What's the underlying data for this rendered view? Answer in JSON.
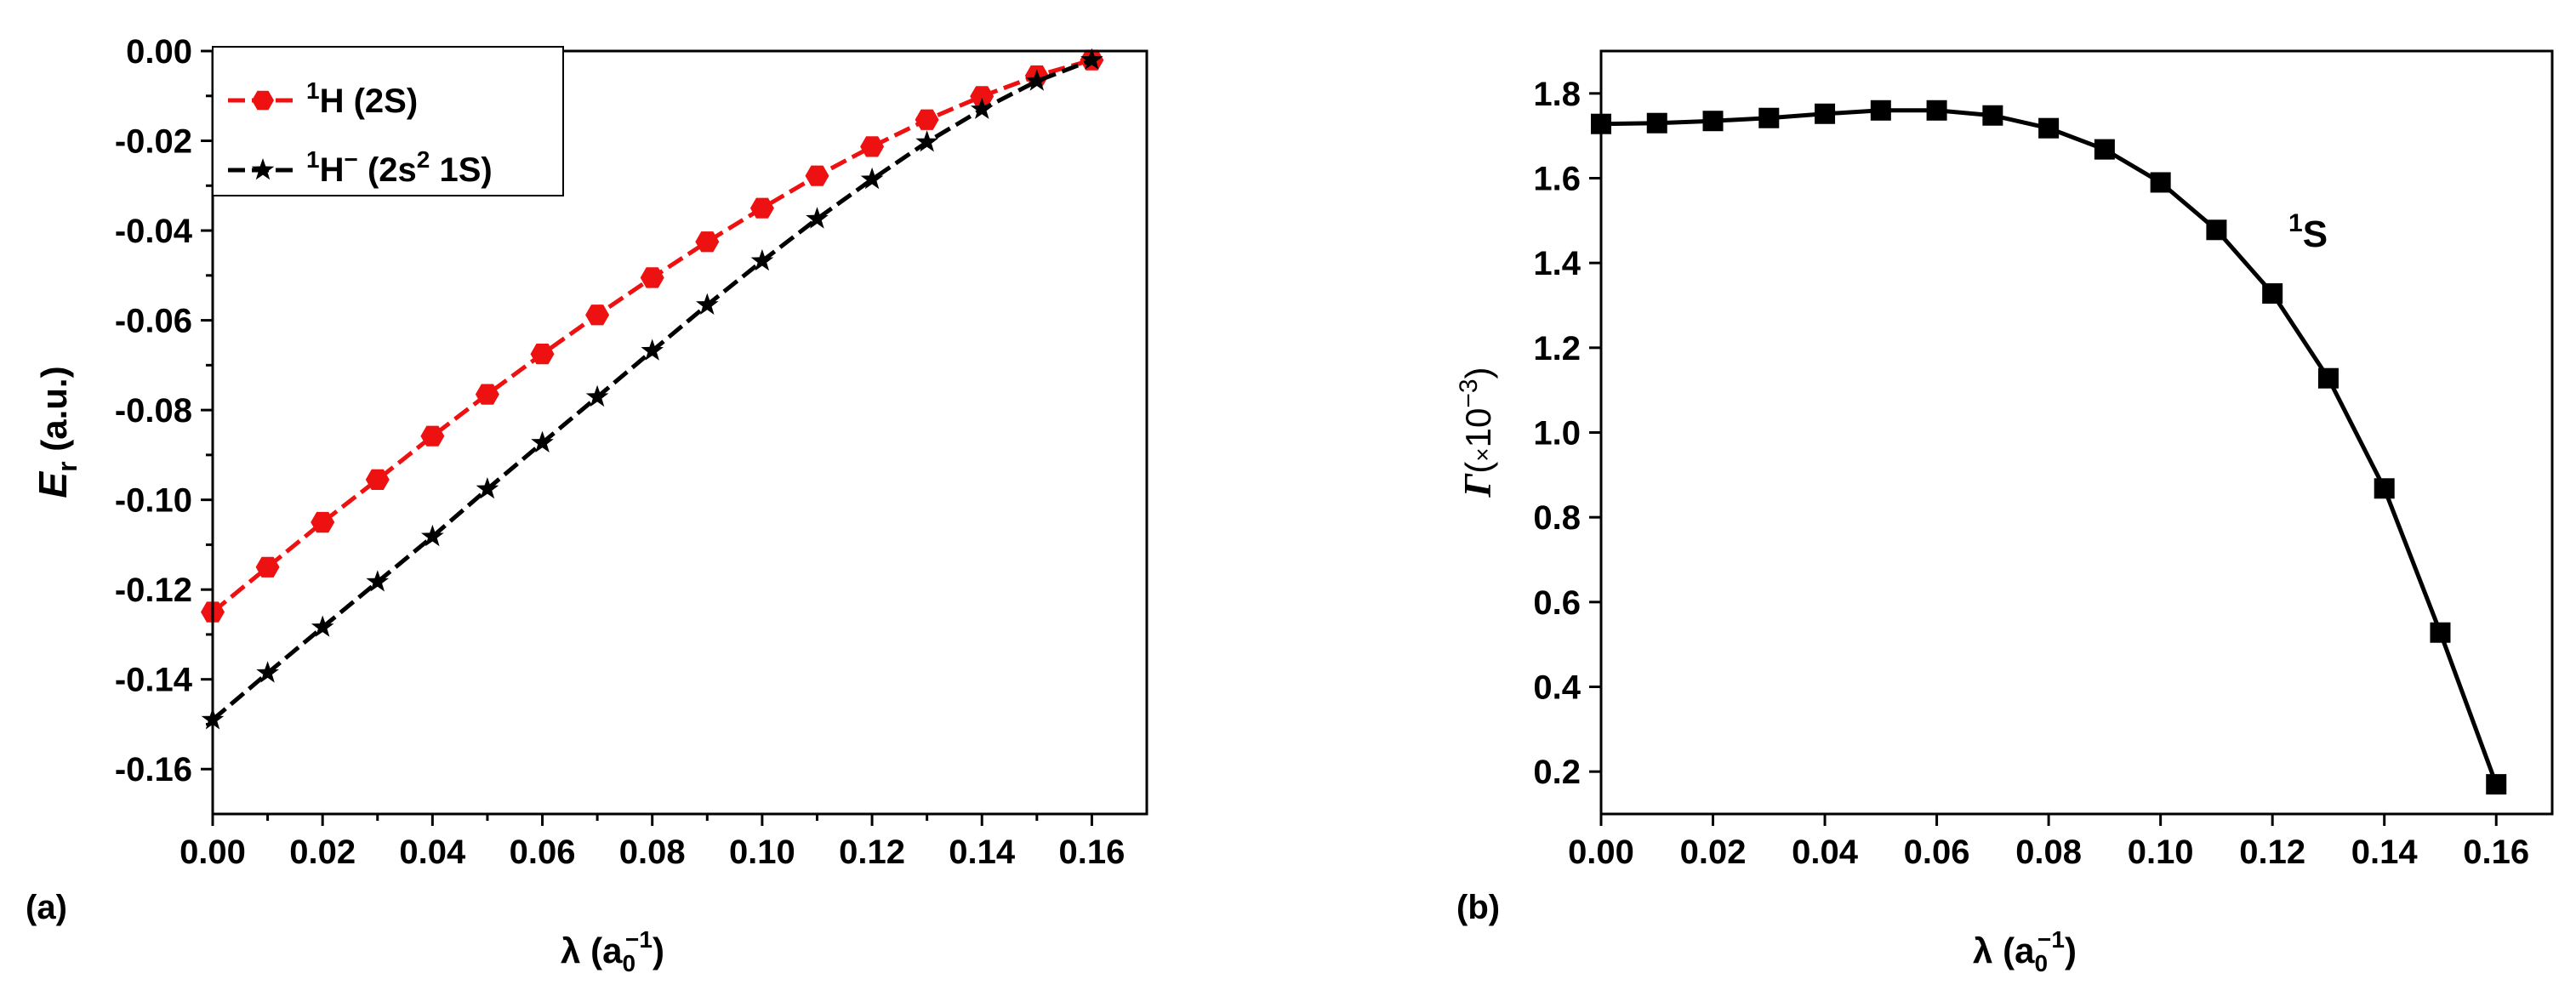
{
  "chart_data": [
    {
      "type": "line",
      "panel_label": "(a)",
      "xlim": [
        0,
        0.17
      ],
      "ylim": [
        -0.17,
        0
      ],
      "x_ticks": [
        "0.00",
        "0.02",
        "0.04",
        "0.06",
        "0.08",
        "0.10",
        "0.12",
        "0.14",
        "0.16"
      ],
      "y_ticks": [
        "0.00",
        "-0.02",
        "-0.04",
        "-0.06",
        "-0.08",
        "-0.10",
        "-0.12",
        "-0.14",
        "-0.16"
      ],
      "xlabel": {
        "symbol": "λ",
        "open": "(a",
        "sub": "0",
        "sup": "−1",
        "close": ")"
      },
      "ylabel": {
        "main": "E",
        "sub": "r",
        "rest": " (a.u.)"
      },
      "legend_position": "top-left",
      "x": [
        0.0,
        0.01,
        0.02,
        0.03,
        0.04,
        0.05,
        0.06,
        0.07,
        0.08,
        0.09,
        0.1,
        0.11,
        0.12,
        0.13,
        0.14,
        0.15,
        0.16
      ],
      "series": [
        {
          "legend": {
            "sup": "1",
            "main": "H",
            "rest": " (2S)"
          },
          "color": "#ee1111",
          "marker": "hexagon",
          "values": [
            -0.125,
            -0.115,
            -0.105,
            -0.0955,
            -0.0858,
            -0.0765,
            -0.0675,
            -0.0588,
            -0.0505,
            -0.0425,
            -0.035,
            -0.0278,
            -0.0213,
            -0.0153,
            -0.0101,
            -0.0055,
            -0.002
          ]
        },
        {
          "legend": {
            "sup": "1",
            "main": "H",
            "mainsup": "−",
            "rest1": " (2s",
            "sup2": "2",
            "rest2": " 1S)"
          },
          "color": "#000000",
          "marker": "star",
          "values": [
            -0.149,
            -0.1386,
            -0.1284,
            -0.1183,
            -0.1082,
            -0.0976,
            -0.0873,
            -0.0771,
            -0.0668,
            -0.0566,
            -0.0468,
            -0.0374,
            -0.0286,
            -0.0203,
            -0.013,
            -0.0067,
            -0.002
          ]
        }
      ]
    },
    {
      "type": "line",
      "panel_label": "(b)",
      "xlim": [
        0,
        0.17
      ],
      "ylim": [
        0.1,
        1.9
      ],
      "x_ticks": [
        "0.00",
        "0.02",
        "0.04",
        "0.06",
        "0.08",
        "0.10",
        "0.12",
        "0.14",
        "0.16"
      ],
      "y_ticks": [
        "0.2",
        "0.4",
        "0.6",
        "0.8",
        "1.0",
        "1.2",
        "1.4",
        "1.6",
        "1.8"
      ],
      "xlabel": {
        "symbol": "λ",
        "open": "(a",
        "sub": "0",
        "sup": "−1",
        "close": ")"
      },
      "ylabel": {
        "main": "Γ",
        "open": "(",
        "times": "×",
        "pow": "10",
        "sup": "−3",
        "close": ")"
      },
      "annotation": {
        "sup": "1",
        "main": "S"
      },
      "x": [
        0.0,
        0.01,
        0.02,
        0.03,
        0.04,
        0.05,
        0.06,
        0.07,
        0.08,
        0.09,
        0.1,
        0.11,
        0.12,
        0.13,
        0.14,
        0.15,
        0.16
      ],
      "series": [
        {
          "color": "#000000",
          "marker": "square",
          "values": [
            1.728,
            1.73,
            1.735,
            1.742,
            1.752,
            1.76,
            1.76,
            1.748,
            1.718,
            1.668,
            1.59,
            1.478,
            1.328,
            1.128,
            0.868,
            0.528,
            0.17
          ]
        }
      ]
    }
  ]
}
